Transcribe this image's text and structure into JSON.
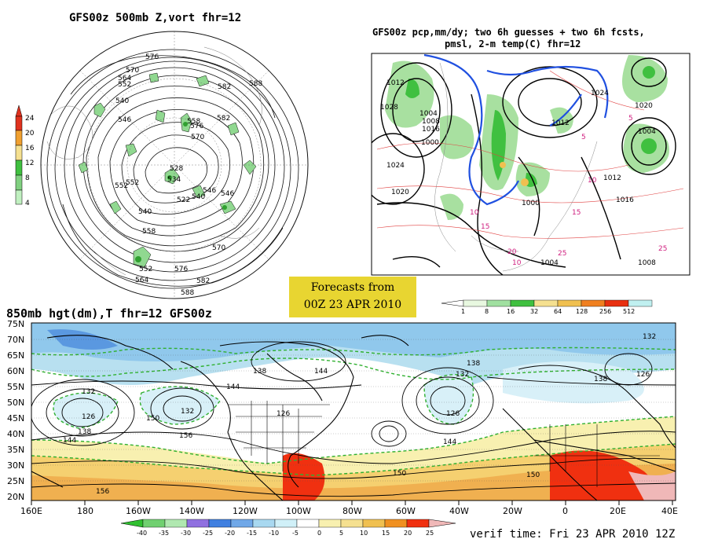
{
  "polar_panel": {
    "title": "GFS00z  500mb Z,vort    fhr=12",
    "contour_labels": [
      "576",
      "570",
      "564",
      "582",
      "552",
      "540",
      "546",
      "558",
      "588",
      "582",
      "576",
      "570",
      "552",
      "546",
      "540",
      "534",
      "528",
      "522",
      "552",
      "540",
      "546",
      "558",
      "570",
      "576",
      "582",
      "588",
      "564",
      "552"
    ],
    "colorbar_labels": [
      "24",
      "20",
      "16",
      "12",
      "8",
      "4"
    ],
    "colorbar_colors": [
      "#e0321e",
      "#f0a030",
      "#f5e090",
      "#40c040",
      "#80d080",
      "#c0f0c0"
    ]
  },
  "precip_panel": {
    "title_line1": "GFS00z pcp,mm/dy; two 6h guesses + two 6h fcsts,",
    "title_line2": "pmsl, 2-m temp(C)  fhr=12",
    "pressure_labels": [
      "1012",
      "1028",
      "1024",
      "1020",
      "1004",
      "1008",
      "1016",
      "1000",
      "1012",
      "1024",
      "1020",
      "1004",
      "1016",
      "1012",
      "1008",
      "1000",
      "1004"
    ],
    "temp_labels": [
      "10",
      "15",
      "5",
      "10",
      "15",
      "20",
      "25",
      "25",
      "10",
      "5"
    ],
    "colorbar_labels": [
      "1",
      "8",
      "16",
      "32",
      "64",
      "128",
      "256",
      "512"
    ],
    "colorbar_colors": [
      "#e8f8e0",
      "#a0e0a0",
      "#40c040",
      "#f5e090",
      "#f0c050",
      "#f08020",
      "#e83010",
      "#c0f0f0"
    ]
  },
  "banner": {
    "line1": "Forecasts from",
    "line2": "00Z 23 APR 2010"
  },
  "map850": {
    "title": "850mb hgt(dm),T   fhr=12 GFS00z",
    "lat_labels": [
      "75N",
      "70N",
      "65N",
      "60N",
      "55N",
      "50N",
      "45N",
      "40N",
      "35N",
      "30N",
      "25N",
      "20N"
    ],
    "lon_labels": [
      "160E",
      "180",
      "160W",
      "140W",
      "120W",
      "100W",
      "80W",
      "60W",
      "40W",
      "20W",
      "0",
      "20E",
      "40E"
    ],
    "height_labels": [
      "132",
      "126",
      "138",
      "144",
      "150",
      "156",
      "132",
      "144",
      "126",
      "138",
      "150",
      "144",
      "132",
      "138",
      "126",
      "144",
      "150",
      "132",
      "138",
      "126",
      "156"
    ],
    "colorbar_labels": [
      "-40",
      "-35",
      "-30",
      "-25",
      "-20",
      "-15",
      "-10",
      "-5",
      "0",
      "5",
      "10",
      "15",
      "20",
      "25"
    ],
    "colorbar_colors": [
      "#30c030",
      "#70d070",
      "#b0e8b0",
      "#9070e0",
      "#4080e0",
      "#70a8e8",
      "#a8d8f0",
      "#d0f0f8",
      "#ffffff",
      "#f8f0b0",
      "#f5e090",
      "#f0c050",
      "#f09020",
      "#f03010",
      "#f0b8b8"
    ]
  },
  "verif": "verif time: Fri 23 APR 2010 12Z"
}
